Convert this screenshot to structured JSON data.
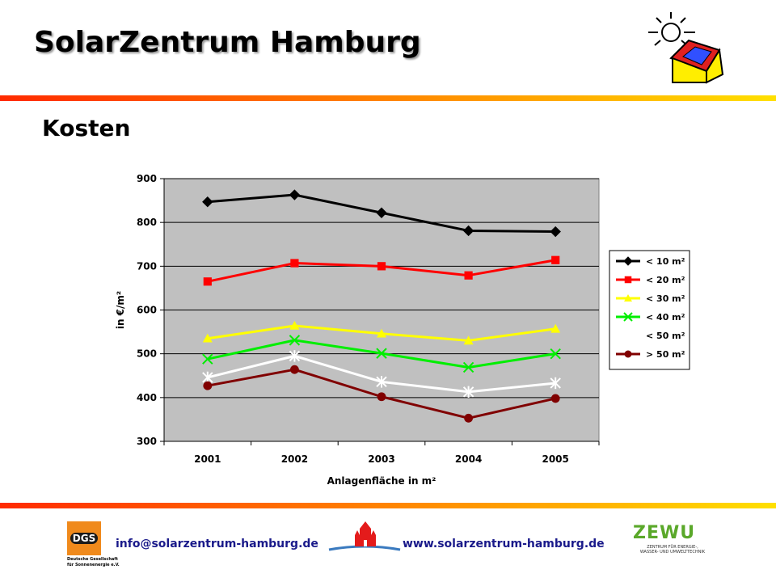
{
  "header": {
    "brand_title": "SolarZentrum Hamburg"
  },
  "slide": {
    "title": "Kosten"
  },
  "footer": {
    "email": "info@solarzentrum-hamburg.de",
    "website": "www.solarzentrum-hamburg.de",
    "dgs_logo_text": "DGS",
    "dgs_caption_line1": "Deutsche Gesellschaft",
    "dgs_caption_line2": "für Sonnenenergie e.V.",
    "zewu_logo_text": "ZEWU",
    "zewu_caption_line1": "ZENTRUM FÜR ENERGIE-,",
    "zewu_caption_line2": "WASSER- UND UMWELTTECHNIK"
  },
  "icons": {
    "header_logo": "sun-house-icon",
    "hamburg_logo": "hamburg-castle-icon"
  },
  "colors": {
    "accent_bar_start": "#ff2a00",
    "accent_bar_end": "#ffe000",
    "plot_background": "#c0c0c0",
    "link": "#1a1a8a"
  },
  "chart_data": {
    "type": "line",
    "title": "",
    "xlabel": "Anlagenfläche in m²",
    "ylabel": "in €/m²",
    "x": [
      "2001",
      "2002",
      "2003",
      "2004",
      "2005"
    ],
    "ylim": [
      300,
      900
    ],
    "yticks": [
      300,
      400,
      500,
      600,
      700,
      800,
      900
    ],
    "grid": true,
    "legend_position": "right",
    "series": [
      {
        "name": "< 10 m²",
        "color": "#000000",
        "marker": "diamond",
        "values": [
          847,
          863,
          822,
          781,
          779
        ]
      },
      {
        "name": "< 20 m²",
        "color": "#ff0000",
        "marker": "square",
        "values": [
          665,
          707,
          700,
          679,
          714
        ]
      },
      {
        "name": "< 30 m²",
        "color": "#ffff00",
        "marker": "triangle",
        "values": [
          535,
          564,
          546,
          530,
          557
        ]
      },
      {
        "name": "< 40 m²",
        "color": "#00ee00",
        "marker": "x",
        "values": [
          488,
          531,
          501,
          469,
          500
        ]
      },
      {
        "name": "< 50 m²",
        "color": "#ffffff",
        "marker": "star",
        "values": [
          446,
          495,
          436,
          413,
          433
        ]
      },
      {
        "name": "> 50 m²",
        "color": "#800000",
        "marker": "circle",
        "values": [
          427,
          464,
          402,
          353,
          398
        ]
      }
    ]
  }
}
